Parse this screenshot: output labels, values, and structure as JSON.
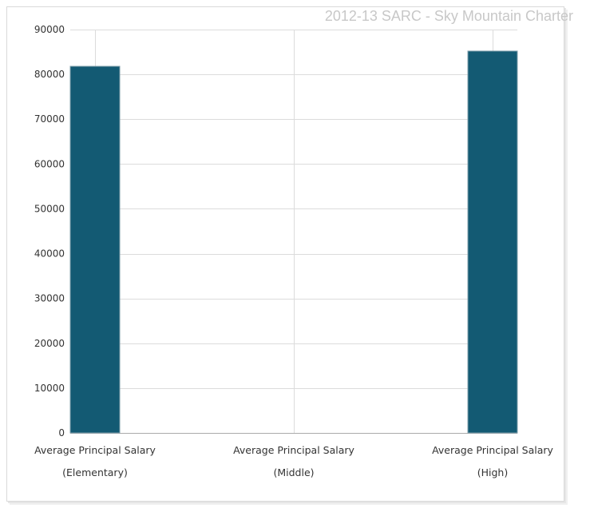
{
  "chart_data": {
    "type": "bar",
    "title": "2012-13 SARC - Sky Mountain Charter",
    "categories": [
      [
        "Average Principal Salary",
        "(Elementary)"
      ],
      [
        "Average Principal Salary",
        "(Middle)"
      ],
      [
        "Average Principal Salary",
        "(High)"
      ]
    ],
    "values": [
      81800,
      null,
      85200
    ],
    "ylim": [
      0,
      90000
    ],
    "yticks": [
      0,
      10000,
      20000,
      30000,
      40000,
      50000,
      60000,
      70000,
      80000,
      90000
    ],
    "grid": true,
    "colors": {
      "bar": "#135a73",
      "grid": "#dcdcdc",
      "axis": "#aaaaaa"
    }
  }
}
